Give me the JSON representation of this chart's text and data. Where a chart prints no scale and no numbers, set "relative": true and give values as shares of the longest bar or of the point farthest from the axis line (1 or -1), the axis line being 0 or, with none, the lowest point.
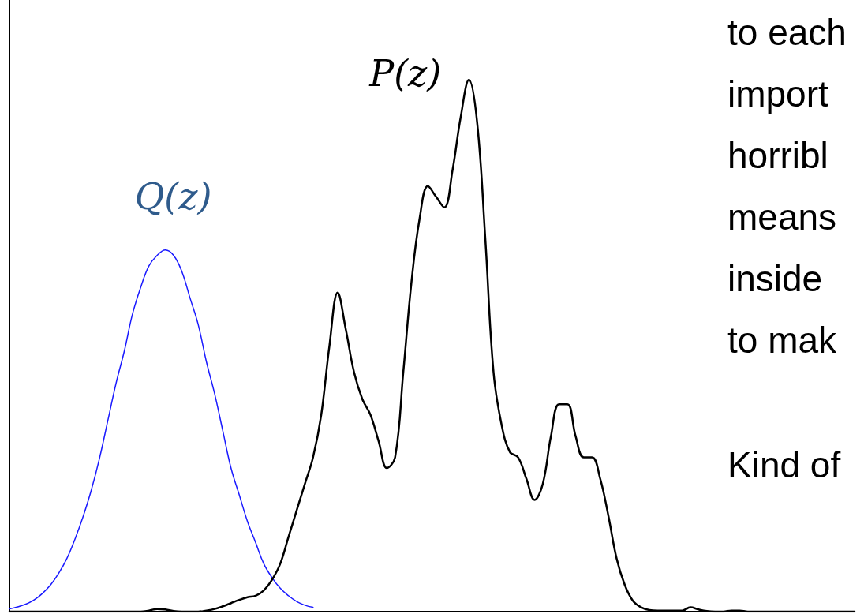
{
  "chart_data": {
    "type": "line",
    "relative": true,
    "grid": false,
    "legend": false,
    "marker": "none",
    "line_style": "solid",
    "tick_labels": false,
    "categories": [
      null,
      null,
      null,
      null,
      null,
      null,
      null,
      null,
      null,
      null,
      null,
      null,
      null,
      null,
      null,
      null,
      null,
      null,
      null,
      null,
      null,
      null,
      null,
      null,
      null,
      null,
      null,
      null,
      null,
      null,
      null,
      null,
      null,
      null,
      null,
      null,
      null,
      null,
      null,
      null,
      null,
      null,
      null,
      null,
      null,
      null,
      null,
      null,
      null,
      null,
      null,
      null,
      null,
      null,
      null,
      null,
      null,
      null,
      null,
      null,
      null,
      null,
      null,
      null,
      null,
      null,
      null,
      null,
      null,
      null,
      null,
      null,
      null,
      null,
      null,
      null,
      null,
      null,
      null,
      null,
      null,
      null,
      null,
      null,
      null,
      null,
      null,
      null,
      null,
      null,
      null,
      null,
      null,
      null,
      null,
      null,
      null,
      null,
      null,
      null,
      null,
      null,
      null,
      null
    ],
    "series": [
      {
        "name": "Q(z)",
        "color": "#1a1aff",
        "values": [
          0.005,
          0.009,
          0.014,
          0.022,
          0.034,
          0.05,
          0.072,
          0.1,
          0.137,
          0.18,
          0.23,
          0.29,
          0.36,
          0.43,
          0.49,
          0.56,
          0.61,
          0.65,
          0.67,
          0.68,
          0.67,
          0.64,
          0.59,
          0.54,
          0.47,
          0.41,
          0.34,
          0.27,
          0.22,
          0.17,
          0.13,
          0.09,
          0.064,
          0.044,
          0.03,
          0.019,
          0.012,
          0.008,
          null,
          null,
          null,
          null,
          null,
          null,
          null,
          null,
          null,
          null,
          null,
          null,
          null,
          null,
          null,
          null,
          null,
          null,
          null,
          null,
          null,
          null,
          null,
          null,
          null,
          null,
          null,
          null,
          null,
          null,
          null,
          null,
          null,
          null,
          null,
          null,
          null,
          null,
          null,
          null,
          null,
          null,
          null,
          null,
          null,
          null,
          null,
          null,
          null,
          null,
          null,
          null,
          null,
          null,
          null,
          null,
          null,
          null,
          null,
          null,
          null,
          null,
          null,
          null,
          null,
          null
        ]
      },
      {
        "name": "P(z)",
        "color": "#000000",
        "values": [
          0,
          0,
          0,
          0,
          0,
          0,
          0,
          0,
          0,
          0,
          0,
          0,
          0,
          0,
          0,
          0,
          0,
          0.002,
          0.005,
          0.004,
          0.001,
          0,
          0,
          0,
          0.002,
          0.005,
          0.01,
          0.016,
          0.022,
          0.027,
          0.03,
          0.04,
          0.06,
          0.09,
          0.14,
          0.19,
          0.24,
          0.29,
          0.37,
          0.5,
          0.6,
          0.53,
          0.45,
          0.4,
          0.37,
          0.32,
          0.27,
          0.29,
          0.45,
          0.62,
          0.74,
          0.8,
          0.78,
          0.76,
          0.83,
          0.93,
          1,
          0.92,
          0.7,
          0.45,
          0.35,
          0.3,
          0.29,
          0.25,
          0.21,
          0.24,
          0.33,
          0.39,
          0.39,
          0.33,
          0.29,
          0.29,
          0.25,
          0.18,
          0.1,
          0.05,
          0.02,
          0.008,
          0.003,
          0.002,
          0.002,
          0.002,
          0.002,
          0.008,
          0.004,
          0.001,
          0,
          0,
          0.002,
          0.002,
          0,
          0,
          0,
          0,
          0,
          0,
          0,
          0,
          0,
          0,
          0,
          0,
          0,
          0
        ]
      }
    ],
    "annotations": [
      "to each",
      "import",
      "horribl",
      "means",
      "inside",
      "to mak",
      "Kind of"
    ]
  }
}
